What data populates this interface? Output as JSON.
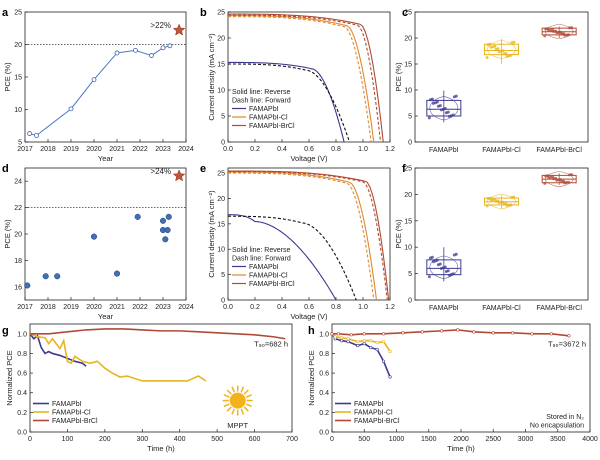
{
  "colors": {
    "blue": "#3d3a8f",
    "orange": "#e0892e",
    "red": "#b04a34",
    "gold": "#e8b420",
    "star": "#c0553a",
    "sphere": "#3f6fb8",
    "sun": "#f2b21c"
  },
  "chart_data": [
    {
      "panel": "a",
      "type": "line",
      "xlabel": "Year",
      "ylabel": "PCE (%)",
      "xlim": [
        2017,
        2024
      ],
      "ylim": [
        5,
        25
      ],
      "xticks": [
        "2017",
        "2018",
        "2019",
        "2020",
        "2021",
        "2022",
        "2023",
        "2024"
      ],
      "yticks": [
        "5",
        "10",
        "15",
        "20",
        "25"
      ],
      "x": [
        2017.2,
        2017.5,
        2019.0,
        2020.0,
        2021.0,
        2021.8,
        2022.5,
        2023.0,
        2023.3
      ],
      "y": [
        6.3,
        6.0,
        10.1,
        14.6,
        18.7,
        19.1,
        18.3,
        19.5,
        19.8
      ],
      "reference_line": 20,
      "highlight": {
        "x": 2023.7,
        "y": 22.2,
        "label": ">22%"
      }
    },
    {
      "panel": "b",
      "type": "line",
      "xlabel": "Voltage (V)",
      "ylabel": "Current density (mA cm⁻²)",
      "xlim": [
        0,
        1.2
      ],
      "ylim": [
        0,
        25
      ],
      "xticks": [
        "0.0",
        "0.2",
        "0.4",
        "0.6",
        "0.8",
        "1.0",
        "1.2"
      ],
      "yticks": [
        "0",
        "5",
        "10",
        "15",
        "20",
        "25"
      ],
      "notes": [
        "Solid line: Reverse",
        "Dash line: Forward"
      ],
      "series": [
        {
          "name": "FAMAPbI",
          "color": "blue",
          "style": "solid",
          "jsc": 15.3,
          "voc": 0.86,
          "knee": 0.62,
          "dash": false
        },
        {
          "name": "FAMAPbI",
          "color": "blue",
          "style": "dash",
          "jsc": 15.0,
          "voc": 0.9,
          "knee": 0.58,
          "dash": true
        },
        {
          "name": "FAMAPbI-Cl",
          "color": "orange",
          "style": "solid",
          "jsc": 24.3,
          "voc": 1.08,
          "knee": 0.88,
          "dash": false
        },
        {
          "name": "FAMAPbI-Cl",
          "color": "orange",
          "style": "dash",
          "jsc": 24.1,
          "voc": 1.06,
          "knee": 0.86,
          "dash": true
        },
        {
          "name": "FAMAPbI-BrCl",
          "color": "red",
          "style": "solid",
          "jsc": 24.6,
          "voc": 1.15,
          "knee": 0.98,
          "dash": false
        },
        {
          "name": "FAMAPbI-BrCl",
          "color": "red",
          "style": "dash",
          "jsc": 24.4,
          "voc": 1.13,
          "knee": 0.96,
          "dash": true
        }
      ]
    },
    {
      "panel": "c",
      "type": "box",
      "ylabel": "PCE (%)",
      "ylim": [
        0,
        25
      ],
      "yticks": [
        "0",
        "5",
        "10",
        "15",
        "20",
        "25"
      ],
      "categories": [
        "FAMAPbI",
        "FAMAPbI-Cl",
        "FAMAPbI-BrCl"
      ],
      "boxes": [
        {
          "name": "FAMAPbI",
          "color": "blue",
          "q1": 5.0,
          "median": 6.3,
          "q3": 8.0,
          "min": 3.8,
          "max": 9.9
        },
        {
          "name": "FAMAPbI-Cl",
          "color": "gold",
          "q1": 16.8,
          "median": 17.6,
          "q3": 18.8,
          "min": 15.0,
          "max": 19.8
        },
        {
          "name": "FAMAPbI-BrCl",
          "color": "red",
          "q1": 20.6,
          "median": 21.2,
          "q3": 21.9,
          "min": 20.0,
          "max": 22.2
        }
      ]
    },
    {
      "panel": "d",
      "type": "scatter",
      "xlabel": "Year",
      "ylabel": "PCE (%)",
      "xlim": [
        2017,
        2024
      ],
      "ylim": [
        15,
        25
      ],
      "xticks": [
        "2017",
        "2018",
        "2019",
        "2020",
        "2021",
        "2022",
        "2023",
        "2024"
      ],
      "yticks": [
        "16",
        "18",
        "20",
        "22",
        "24"
      ],
      "x": [
        2017.1,
        2017.9,
        2018.4,
        2020.0,
        2021.0,
        2021.9,
        2023.0,
        2023.0,
        2023.1,
        2023.2,
        2023.25
      ],
      "y": [
        16.1,
        16.8,
        16.8,
        19.8,
        17.0,
        21.3,
        21.0,
        20.3,
        19.6,
        20.3,
        21.3
      ],
      "reference_line": 22,
      "highlight": {
        "x": 2023.7,
        "y": 24.4,
        "label": ">24%"
      }
    },
    {
      "panel": "e",
      "type": "line",
      "xlabel": "Voltage (V)",
      "ylabel": "Current density (mA cm⁻²)",
      "xlim": [
        0,
        1.2
      ],
      "ylim": [
        0,
        26
      ],
      "xticks": [
        "0.0",
        "0.2",
        "0.4",
        "0.6",
        "0.8",
        "1.0",
        "1.2"
      ],
      "yticks": [
        "0",
        "5",
        "10",
        "15",
        "20",
        "25"
      ],
      "notes": [
        "Solid line: Reverse",
        "Dash line: Forward"
      ],
      "series": [
        {
          "name": "FAMAPbI",
          "color": "blue",
          "style": "solid",
          "jsc": 16.8,
          "voc": 0.8,
          "knee": 0.2,
          "dash": false
        },
        {
          "name": "FAMAPbI",
          "color": "blue",
          "style": "dash",
          "jsc": 16.5,
          "voc": 0.95,
          "knee": 0.55,
          "dash": true
        },
        {
          "name": "FAMAPbI-Cl",
          "color": "orange",
          "style": "solid",
          "jsc": 25.2,
          "voc": 1.1,
          "knee": 0.9,
          "dash": false
        },
        {
          "name": "FAMAPbI-Cl",
          "color": "orange",
          "style": "dash",
          "jsc": 25.0,
          "voc": 1.08,
          "knee": 0.88,
          "dash": true
        },
        {
          "name": "FAMAPbI-BrCl",
          "color": "red",
          "style": "solid",
          "jsc": 25.4,
          "voc": 1.19,
          "knee": 1.02,
          "dash": false
        },
        {
          "name": "FAMAPbI-BrCl",
          "color": "red",
          "style": "dash",
          "jsc": 25.3,
          "voc": 1.18,
          "knee": 1.0,
          "dash": true
        }
      ]
    },
    {
      "panel": "f",
      "type": "box",
      "ylabel": "PCE (%)",
      "ylim": [
        0,
        25
      ],
      "yticks": [
        "0",
        "5",
        "10",
        "15",
        "20",
        "25"
      ],
      "categories": [
        "FAMAPbI",
        "FAMAPbI-Cl",
        "FAMAPbI-BrCl"
      ],
      "boxes": [
        {
          "name": "FAMAPbI",
          "color": "blue",
          "q1": 4.8,
          "median": 6.0,
          "q3": 7.6,
          "min": 3.5,
          "max": 10.0
        },
        {
          "name": "FAMAPbI-Cl",
          "color": "gold",
          "q1": 18.0,
          "median": 18.6,
          "q3": 19.3,
          "min": 17.4,
          "max": 19.8
        },
        {
          "name": "FAMAPbI-BrCl",
          "color": "red",
          "q1": 22.2,
          "median": 22.9,
          "q3": 23.6,
          "min": 21.8,
          "max": 24.0
        }
      ]
    },
    {
      "panel": "g",
      "type": "line",
      "xlabel": "Time (h)",
      "ylabel": "Normalized PCE",
      "xlim": [
        0,
        700
      ],
      "ylim": [
        0,
        1.1
      ],
      "xticks": [
        "0",
        "100",
        "200",
        "300",
        "400",
        "500",
        "600",
        "700"
      ],
      "yticks": [
        "0.0",
        "0.2",
        "0.4",
        "0.6",
        "0.8",
        "1.0"
      ],
      "annotation": "T₉₀=682 h",
      "condition": "MPPT",
      "series": [
        {
          "name": "FAMAPbI",
          "color": "blue",
          "x": [
            0,
            10,
            20,
            30,
            40,
            50,
            60,
            80,
            100,
            120,
            140,
            150
          ],
          "y": [
            1.0,
            0.95,
            0.98,
            0.86,
            0.8,
            0.82,
            0.8,
            0.78,
            0.75,
            0.72,
            0.7,
            0.67
          ]
        },
        {
          "name": "FAMAPbI-Cl",
          "color": "gold",
          "x": [
            0,
            20,
            40,
            50,
            60,
            70,
            80,
            90,
            100,
            110,
            120,
            140,
            160,
            180,
            200,
            220,
            240,
            260,
            300,
            350,
            420,
            450,
            470
          ],
          "y": [
            1.0,
            0.97,
            0.96,
            0.9,
            0.95,
            0.9,
            0.85,
            0.93,
            0.72,
            0.7,
            0.77,
            0.72,
            0.7,
            0.72,
            0.65,
            0.6,
            0.56,
            0.57,
            0.52,
            0.52,
            0.52,
            0.57,
            0.52
          ]
        },
        {
          "name": "FAMAPbI-BrCl",
          "color": "red",
          "x": [
            0,
            50,
            100,
            150,
            200,
            250,
            300,
            350,
            400,
            450,
            500,
            550,
            600,
            650,
            682
          ],
          "y": [
            1.0,
            1.0,
            1.02,
            1.04,
            1.05,
            1.05,
            1.04,
            1.03,
            1.03,
            1.02,
            1.01,
            1.0,
            0.99,
            0.97,
            0.95
          ]
        }
      ]
    },
    {
      "panel": "h",
      "type": "line",
      "xlabel": "Time (h)",
      "ylabel": "Normalized PCE",
      "xlim": [
        0,
        4000
      ],
      "ylim": [
        0,
        1.1
      ],
      "xticks": [
        "0",
        "500",
        "1000",
        "1500",
        "2000",
        "2500",
        "3000",
        "3500",
        "4000"
      ],
      "yticks": [
        "0.0",
        "0.2",
        "0.4",
        "0.6",
        "0.8",
        "1.0"
      ],
      "annotation": "T₉₀=3672 h",
      "notes": [
        "Stored in N₂",
        "No encapsulation"
      ],
      "series": [
        {
          "name": "FAMAPbI",
          "color": "blue",
          "x": [
            0,
            50,
            150,
            250,
            400,
            500,
            600,
            700,
            800,
            900
          ],
          "y": [
            1.0,
            0.95,
            0.93,
            0.92,
            0.88,
            0.9,
            0.86,
            0.84,
            0.72,
            0.56
          ]
        },
        {
          "name": "FAMAPbI-Cl",
          "color": "gold",
          "x": [
            0,
            50,
            150,
            250,
            400,
            500,
            600,
            700,
            800,
            900
          ],
          "y": [
            1.0,
            0.97,
            0.96,
            0.95,
            0.92,
            0.93,
            0.93,
            0.91,
            0.92,
            0.82
          ]
        },
        {
          "name": "FAMAPbI-BrCl",
          "color": "red",
          "x": [
            0,
            100,
            300,
            500,
            800,
            1100,
            1400,
            1700,
            1950,
            2200,
            2500,
            2800,
            3100,
            3400,
            3672
          ],
          "y": [
            1.0,
            1.0,
            0.99,
            1.0,
            1.0,
            1.01,
            1.02,
            1.03,
            1.04,
            1.02,
            1.01,
            1.01,
            1.0,
            1.0,
            0.98
          ]
        }
      ]
    }
  ]
}
